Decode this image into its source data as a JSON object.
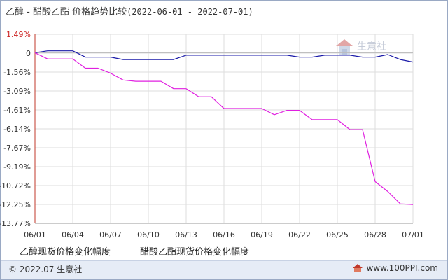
{
  "title": {
    "product": "乙醇 - 醋酸乙酯 价格趋势比较",
    "range": "(2022-06-01 - 2022-07-01)"
  },
  "watermark": {
    "text": "生意社",
    "icon": "house-logo-icon"
  },
  "footer": {
    "left": "© 2022.07 生意社",
    "right": "www.100PPI.com",
    "icon": "home-logo-icon"
  },
  "colors": {
    "series1": "#1a1aa8",
    "series2": "#e020e0",
    "grid": "#dddddd",
    "axis": "#c0392b",
    "frame": "#9aa9c4",
    "footer_bg": "#e6ecf6"
  },
  "chart_data": {
    "type": "line",
    "title": "乙醇 - 醋酸乙酯 价格趋势比较(2022-06-01 - 2022-07-01)",
    "xlabel": "",
    "ylabel": "",
    "x_ticks": [
      "06/01",
      "06/04",
      "06/07",
      "06/10",
      "06/13",
      "06/16",
      "06/19",
      "06/22",
      "06/25",
      "06/28",
      "07/01"
    ],
    "y_ticks": [
      "1.49%",
      "0",
      "-1.56%",
      "-3.09%",
      "-4.61%",
      "-6.14%",
      "-7.67%",
      "-9.19%",
      "-10.72%",
      "-12.25%",
      "-13.77%"
    ],
    "ylim": [
      -13.77,
      1.49
    ],
    "x": [
      "06/01",
      "06/02",
      "06/03",
      "06/04",
      "06/05",
      "06/06",
      "06/07",
      "06/08",
      "06/09",
      "06/10",
      "06/11",
      "06/12",
      "06/13",
      "06/14",
      "06/15",
      "06/16",
      "06/17",
      "06/18",
      "06/19",
      "06/20",
      "06/21",
      "06/22",
      "06/23",
      "06/24",
      "06/25",
      "06/26",
      "06/27",
      "06/28",
      "06/29",
      "06/30",
      "07/01"
    ],
    "series": [
      {
        "name": "乙醇现货价格变化幅度",
        "values": [
          0,
          0.15,
          0.15,
          0.15,
          -0.35,
          -0.35,
          -0.35,
          -0.55,
          -0.55,
          -0.55,
          -0.55,
          -0.55,
          -0.2,
          -0.2,
          -0.2,
          -0.2,
          -0.2,
          -0.2,
          -0.2,
          -0.2,
          -0.2,
          -0.35,
          -0.35,
          -0.2,
          -0.2,
          -0.2,
          -0.35,
          -0.35,
          -0.15,
          -0.55,
          -0.75
        ]
      },
      {
        "name": "醋酸乙酯现货价格变化幅度",
        "values": [
          0,
          -0.5,
          -0.5,
          -0.5,
          -1.25,
          -1.25,
          -1.65,
          -2.2,
          -2.3,
          -2.3,
          -2.3,
          -2.9,
          -2.9,
          -3.55,
          -3.55,
          -4.5,
          -4.5,
          -4.5,
          -4.5,
          -5.0,
          -4.65,
          -4.65,
          -5.4,
          -5.4,
          -5.4,
          -6.2,
          -6.2,
          -10.4,
          -11.2,
          -12.2,
          -12.25
        ]
      }
    ],
    "legend": "bottom",
    "grid": true
  }
}
